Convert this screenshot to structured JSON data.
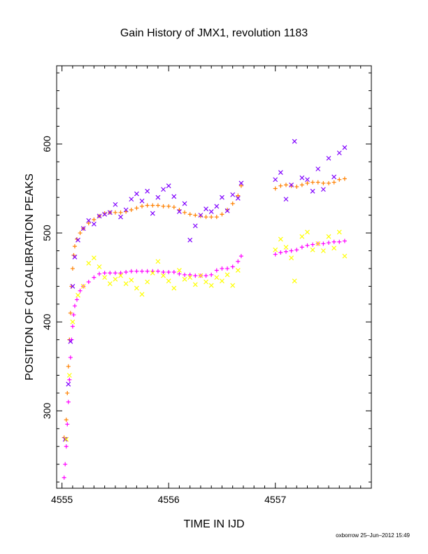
{
  "chart_data": {
    "type": "scatter",
    "title": "Gain History of JMX1, revolution 1183",
    "xlabel": "TIME IN IJD",
    "ylabel": "POSITION OF Cd CALIBRATION PEAKS",
    "xlim": [
      4554.95,
      4557.9
    ],
    "ylim": [
      213,
      688
    ],
    "xticks": [
      4555,
      4556,
      4557
    ],
    "yticks": [
      300,
      400,
      500,
      600
    ],
    "grid": false,
    "legend": "none",
    "series": [
      {
        "color": "#ff8000",
        "marker": "plus",
        "points": [
          [
            4555.02,
            270
          ],
          [
            4555.04,
            290
          ],
          [
            4555.05,
            320
          ],
          [
            4555.06,
            350
          ],
          [
            4555.07,
            380
          ],
          [
            4555.08,
            410
          ],
          [
            4555.09,
            440
          ],
          [
            4555.1,
            460
          ],
          [
            4555.11,
            475
          ],
          [
            4555.12,
            485
          ],
          [
            4555.14,
            493
          ],
          [
            4555.17,
            500
          ],
          [
            4555.2,
            505
          ],
          [
            4555.25,
            511
          ],
          [
            4555.3,
            515
          ],
          [
            4555.35,
            519
          ],
          [
            4555.4,
            522
          ],
          [
            4555.45,
            523
          ],
          [
            4555.5,
            523
          ],
          [
            4555.55,
            523
          ],
          [
            4555.6,
            524
          ],
          [
            4555.65,
            526
          ],
          [
            4555.7,
            528
          ],
          [
            4555.75,
            530
          ],
          [
            4555.8,
            531
          ],
          [
            4555.85,
            531
          ],
          [
            4555.9,
            531
          ],
          [
            4555.95,
            530
          ],
          [
            4556.0,
            530
          ],
          [
            4556.05,
            529
          ],
          [
            4556.1,
            526
          ],
          [
            4556.15,
            523
          ],
          [
            4556.2,
            521
          ],
          [
            4556.25,
            520
          ],
          [
            4556.3,
            519
          ],
          [
            4556.35,
            518
          ],
          [
            4556.4,
            518
          ],
          [
            4556.45,
            518
          ],
          [
            4556.5,
            521
          ],
          [
            4556.55,
            526
          ],
          [
            4556.6,
            533
          ],
          [
            4556.65,
            542
          ],
          [
            4556.68,
            553
          ],
          [
            4557.0,
            550
          ],
          [
            4557.05,
            553
          ],
          [
            4557.1,
            554
          ],
          [
            4557.15,
            553
          ],
          [
            4557.2,
            552
          ],
          [
            4557.25,
            554
          ],
          [
            4557.3,
            556
          ],
          [
            4557.35,
            557
          ],
          [
            4557.4,
            557
          ],
          [
            4557.45,
            556
          ],
          [
            4557.5,
            556
          ],
          [
            4557.55,
            557
          ],
          [
            4557.6,
            560
          ],
          [
            4557.65,
            561
          ]
        ]
      },
      {
        "color": "#ff00ff",
        "marker": "plus",
        "points": [
          [
            4555.02,
            225
          ],
          [
            4555.03,
            240
          ],
          [
            4555.04,
            260
          ],
          [
            4555.05,
            285
          ],
          [
            4555.06,
            310
          ],
          [
            4555.07,
            335
          ],
          [
            4555.08,
            360
          ],
          [
            4555.09,
            380
          ],
          [
            4555.1,
            395
          ],
          [
            4555.11,
            408
          ],
          [
            4555.12,
            418
          ],
          [
            4555.14,
            425
          ],
          [
            4555.17,
            435
          ],
          [
            4555.2,
            440
          ],
          [
            4555.25,
            445
          ],
          [
            4555.3,
            450
          ],
          [
            4555.35,
            454
          ],
          [
            4555.4,
            455
          ],
          [
            4555.45,
            455
          ],
          [
            4555.5,
            455
          ],
          [
            4555.55,
            455
          ],
          [
            4555.6,
            456
          ],
          [
            4555.65,
            457
          ],
          [
            4555.7,
            457
          ],
          [
            4555.75,
            457
          ],
          [
            4555.8,
            457
          ],
          [
            4555.85,
            457
          ],
          [
            4555.9,
            457
          ],
          [
            4555.95,
            456
          ],
          [
            4556.0,
            456
          ],
          [
            4556.05,
            456
          ],
          [
            4556.1,
            454
          ],
          [
            4556.15,
            453
          ],
          [
            4556.2,
            453
          ],
          [
            4556.25,
            452
          ],
          [
            4556.3,
            452
          ],
          [
            4556.35,
            452
          ],
          [
            4556.4,
            453
          ],
          [
            4556.45,
            458
          ],
          [
            4556.5,
            460
          ],
          [
            4556.55,
            460
          ],
          [
            4556.6,
            462
          ],
          [
            4556.65,
            468
          ],
          [
            4556.68,
            474
          ],
          [
            4557.0,
            476
          ],
          [
            4557.05,
            478
          ],
          [
            4557.1,
            479
          ],
          [
            4557.15,
            480
          ],
          [
            4557.2,
            481
          ],
          [
            4557.25,
            484
          ],
          [
            4557.3,
            486
          ],
          [
            4557.35,
            487
          ],
          [
            4557.4,
            488
          ],
          [
            4557.45,
            488
          ],
          [
            4557.5,
            489
          ],
          [
            4557.55,
            490
          ],
          [
            4557.6,
            490
          ],
          [
            4557.65,
            491
          ]
        ]
      },
      {
        "color": "#8000ff",
        "marker": "cross",
        "points": [
          [
            4555.03,
            268
          ],
          [
            4555.06,
            330
          ],
          [
            4555.08,
            378
          ],
          [
            4555.1,
            440
          ],
          [
            4555.12,
            473
          ],
          [
            4555.15,
            492
          ],
          [
            4555.2,
            505
          ],
          [
            4555.25,
            514
          ],
          [
            4555.3,
            510
          ],
          [
            4555.35,
            519
          ],
          [
            4555.4,
            521
          ],
          [
            4555.45,
            523
          ],
          [
            4555.5,
            532
          ],
          [
            4555.55,
            518
          ],
          [
            4555.6,
            526
          ],
          [
            4555.65,
            538
          ],
          [
            4555.7,
            544
          ],
          [
            4555.75,
            536
          ],
          [
            4555.8,
            547
          ],
          [
            4555.85,
            522
          ],
          [
            4555.9,
            540
          ],
          [
            4555.95,
            549
          ],
          [
            4556.0,
            553
          ],
          [
            4556.05,
            541
          ],
          [
            4556.1,
            524
          ],
          [
            4556.15,
            533
          ],
          [
            4556.2,
            492
          ],
          [
            4556.25,
            508
          ],
          [
            4556.3,
            520
          ],
          [
            4556.35,
            527
          ],
          [
            4556.4,
            524
          ],
          [
            4556.45,
            530
          ],
          [
            4556.5,
            540
          ],
          [
            4556.55,
            525
          ],
          [
            4556.6,
            543
          ],
          [
            4556.65,
            539
          ],
          [
            4556.68,
            556
          ],
          [
            4557.0,
            560
          ],
          [
            4557.05,
            568
          ],
          [
            4557.1,
            538
          ],
          [
            4557.15,
            554
          ],
          [
            4557.18,
            603
          ],
          [
            4557.25,
            562
          ],
          [
            4557.3,
            560
          ],
          [
            4557.35,
            547
          ],
          [
            4557.4,
            572
          ],
          [
            4557.45,
            549
          ],
          [
            4557.5,
            584
          ],
          [
            4557.55,
            563
          ],
          [
            4557.6,
            590
          ],
          [
            4557.65,
            596
          ]
        ]
      },
      {
        "color": "#ffff00",
        "marker": "cross",
        "points": [
          [
            4555.04,
            268
          ],
          [
            4555.07,
            340
          ],
          [
            4555.1,
            400
          ],
          [
            4555.15,
            430
          ],
          [
            4555.2,
            440
          ],
          [
            4555.25,
            466
          ],
          [
            4555.3,
            472
          ],
          [
            4555.35,
            462
          ],
          [
            4555.4,
            450
          ],
          [
            4555.45,
            443
          ],
          [
            4555.5,
            448
          ],
          [
            4555.55,
            452
          ],
          [
            4555.6,
            443
          ],
          [
            4555.65,
            447
          ],
          [
            4555.7,
            438
          ],
          [
            4555.75,
            431
          ],
          [
            4555.8,
            445
          ],
          [
            4555.85,
            455
          ],
          [
            4555.9,
            468
          ],
          [
            4555.95,
            452
          ],
          [
            4556.0,
            446
          ],
          [
            4556.05,
            438
          ],
          [
            4556.1,
            458
          ],
          [
            4556.15,
            448
          ],
          [
            4556.2,
            450
          ],
          [
            4556.25,
            442
          ],
          [
            4556.3,
            452
          ],
          [
            4556.35,
            445
          ],
          [
            4556.4,
            441
          ],
          [
            4556.45,
            450
          ],
          [
            4556.5,
            446
          ],
          [
            4556.55,
            453
          ],
          [
            4556.6,
            441
          ],
          [
            4556.65,
            458
          ],
          [
            4557.0,
            481
          ],
          [
            4557.05,
            493
          ],
          [
            4557.1,
            484
          ],
          [
            4557.15,
            472
          ],
          [
            4557.18,
            446
          ],
          [
            4557.25,
            496
          ],
          [
            4557.3,
            501
          ],
          [
            4557.35,
            481
          ],
          [
            4557.4,
            488
          ],
          [
            4557.45,
            480
          ],
          [
            4557.5,
            496
          ],
          [
            4557.55,
            483
          ],
          [
            4557.6,
            501
          ],
          [
            4557.65,
            474
          ]
        ]
      }
    ]
  },
  "footer": "oxborrow 25–Jun–2012 15:49"
}
